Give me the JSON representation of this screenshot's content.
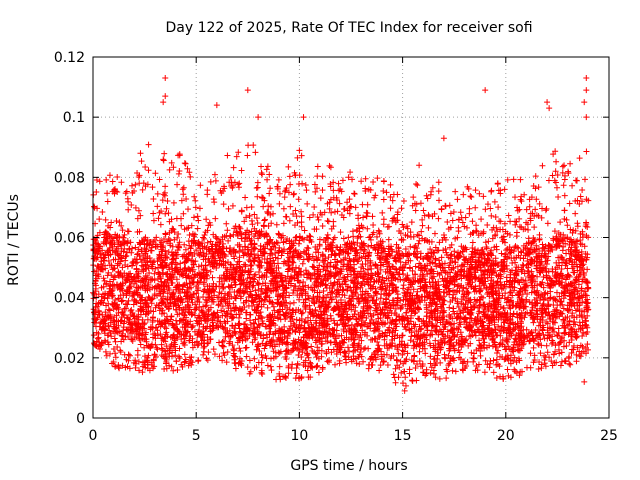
{
  "chart_data": {
    "type": "scatter",
    "title": "Day 122 of 2025, Rate Of TEC Index for receiver sofi",
    "xlabel": "GPS time / hours",
    "ylabel": "ROTI / TECUs",
    "xlim": [
      0,
      25
    ],
    "ylim": [
      0,
      0.12
    ],
    "xticks": [
      0,
      5,
      10,
      15,
      20,
      25
    ],
    "yticks": [
      0,
      0.02,
      0.04,
      0.06,
      0.08,
      0.1,
      0.12
    ],
    "ytick_labels": [
      "0",
      "0.02",
      "0.04",
      "0.06",
      "0.08",
      "0.1",
      "0.12"
    ],
    "grid": true,
    "marker": "plus",
    "color": "#ff0000",
    "x_range_data": [
      0,
      24
    ],
    "envelope": [
      {
        "x": 0.0,
        "low": 0.025,
        "typ_low": 0.03,
        "typ_high": 0.06,
        "high": 0.085
      },
      {
        "x": 1.0,
        "low": 0.017,
        "typ_low": 0.028,
        "typ_high": 0.06,
        "high": 0.08
      },
      {
        "x": 2.0,
        "low": 0.015,
        "typ_low": 0.025,
        "typ_high": 0.058,
        "high": 0.085
      },
      {
        "x": 3.0,
        "low": 0.015,
        "typ_low": 0.025,
        "typ_high": 0.06,
        "high": 0.095
      },
      {
        "x": 4.0,
        "low": 0.015,
        "typ_low": 0.025,
        "typ_high": 0.06,
        "high": 0.09
      },
      {
        "x": 5.0,
        "low": 0.018,
        "typ_low": 0.025,
        "typ_high": 0.058,
        "high": 0.08
      },
      {
        "x": 6.0,
        "low": 0.02,
        "typ_low": 0.03,
        "typ_high": 0.06,
        "high": 0.085
      },
      {
        "x": 7.0,
        "low": 0.015,
        "typ_low": 0.025,
        "typ_high": 0.06,
        "high": 0.09
      },
      {
        "x": 8.0,
        "low": 0.013,
        "typ_low": 0.025,
        "typ_high": 0.062,
        "high": 0.095
      },
      {
        "x": 9.0,
        "low": 0.012,
        "typ_low": 0.022,
        "typ_high": 0.058,
        "high": 0.08
      },
      {
        "x": 10.0,
        "low": 0.012,
        "typ_low": 0.022,
        "typ_high": 0.06,
        "high": 0.09
      },
      {
        "x": 11.0,
        "low": 0.015,
        "typ_low": 0.025,
        "typ_high": 0.06,
        "high": 0.085
      },
      {
        "x": 12.0,
        "low": 0.017,
        "typ_low": 0.025,
        "typ_high": 0.058,
        "high": 0.085
      },
      {
        "x": 13.0,
        "low": 0.017,
        "typ_low": 0.025,
        "typ_high": 0.058,
        "high": 0.08
      },
      {
        "x": 14.0,
        "low": 0.015,
        "typ_low": 0.025,
        "typ_high": 0.058,
        "high": 0.08
      },
      {
        "x": 15.0,
        "low": 0.01,
        "typ_low": 0.022,
        "typ_high": 0.055,
        "high": 0.075
      },
      {
        "x": 16.0,
        "low": 0.013,
        "typ_low": 0.022,
        "typ_high": 0.055,
        "high": 0.08
      },
      {
        "x": 17.0,
        "low": 0.013,
        "typ_low": 0.022,
        "typ_high": 0.055,
        "high": 0.08
      },
      {
        "x": 18.0,
        "low": 0.015,
        "typ_low": 0.025,
        "typ_high": 0.055,
        "high": 0.08
      },
      {
        "x": 19.0,
        "low": 0.015,
        "typ_low": 0.025,
        "typ_high": 0.055,
        "high": 0.075
      },
      {
        "x": 20.0,
        "low": 0.012,
        "typ_low": 0.022,
        "typ_high": 0.055,
        "high": 0.08
      },
      {
        "x": 21.0,
        "low": 0.015,
        "typ_low": 0.025,
        "typ_high": 0.058,
        "high": 0.08
      },
      {
        "x": 22.0,
        "low": 0.017,
        "typ_low": 0.025,
        "typ_high": 0.06,
        "high": 0.09
      },
      {
        "x": 23.0,
        "low": 0.017,
        "typ_low": 0.025,
        "typ_high": 0.06,
        "high": 0.09
      },
      {
        "x": 24.0,
        "low": 0.02,
        "typ_low": 0.028,
        "typ_high": 0.06,
        "high": 0.09
      }
    ],
    "outliers": [
      {
        "x": 3.5,
        "y": 0.113
      },
      {
        "x": 3.5,
        "y": 0.107
      },
      {
        "x": 3.4,
        "y": 0.105
      },
      {
        "x": 6.0,
        "y": 0.104
      },
      {
        "x": 7.5,
        "y": 0.109
      },
      {
        "x": 8.0,
        "y": 0.1
      },
      {
        "x": 10.2,
        "y": 0.1
      },
      {
        "x": 19.0,
        "y": 0.109
      },
      {
        "x": 22.0,
        "y": 0.105
      },
      {
        "x": 22.1,
        "y": 0.103
      },
      {
        "x": 23.9,
        "y": 0.113
      },
      {
        "x": 23.9,
        "y": 0.109
      },
      {
        "x": 23.8,
        "y": 0.105
      },
      {
        "x": 23.9,
        "y": 0.1
      },
      {
        "x": 2.3,
        "y": 0.088
      },
      {
        "x": 15.8,
        "y": 0.084
      },
      {
        "x": 17.0,
        "y": 0.093
      },
      {
        "x": 23.8,
        "y": 0.012
      },
      {
        "x": 15.1,
        "y": 0.009
      }
    ]
  }
}
